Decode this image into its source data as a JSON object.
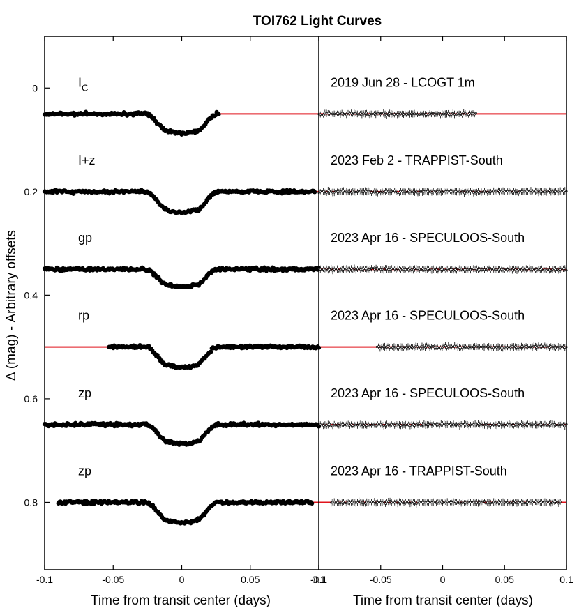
{
  "chart_data": {
    "type": "scatter",
    "title": "TOI762 Light Curves",
    "ylabel": "Δ (mag) - Arbitrary offsets",
    "ylim": [
      0.93,
      -0.1
    ],
    "y_ticks": [
      "0",
      "0.2",
      "0.4",
      "0.6",
      "0.8"
    ],
    "y_tick_values": [
      0,
      0.2,
      0.4,
      0.6,
      0.8
    ],
    "panels": [
      {
        "name": "light curves",
        "xlabel": "Time from transit center (days)",
        "xlim": [
          -0.1,
          0.1
        ],
        "x_ticks": [
          "-0.1",
          "-0.05",
          "0",
          "0.05",
          "0.1"
        ],
        "x_tick_values": [
          -0.1,
          -0.05,
          0,
          0.05,
          0.1
        ],
        "marker": "filled circle"
      },
      {
        "name": "residuals",
        "xlabel": "Time from transit center (days)",
        "xlim": [
          -0.1,
          0.1
        ],
        "x_ticks": [
          "-0.1",
          "-0.05",
          "0",
          "0.05",
          "0.1"
        ],
        "x_tick_values": [
          -0.1,
          -0.05,
          0,
          0.05,
          0.1
        ],
        "marker": "open circle with error bars"
      }
    ],
    "model_color": "#e0141c",
    "point_color": "#000000",
    "transit_model": {
      "ingress_start": -0.026,
      "full_start": -0.01,
      "full_end": 0.01,
      "egress_end": 0.026
    },
    "series": [
      {
        "filter": "I",
        "filter_sub": "C",
        "label": "2019 Jun 28 - LCOGT 1m",
        "baseline": 0.05,
        "depth": 0.033,
        "x_range": [
          -0.1,
          0.027
        ],
        "resid_range": [
          -0.1,
          0.027
        ]
      },
      {
        "filter": "I+z",
        "filter_sub": "",
        "label": "2023 Feb 2 - TRAPPIST-South",
        "baseline": 0.2,
        "depth": 0.036,
        "x_range": [
          -0.1,
          0.097
        ],
        "resid_range": [
          -0.1,
          0.1
        ]
      },
      {
        "filter": "gp",
        "filter_sub": "",
        "label": "2023 Apr 16 - SPECULOOS-South",
        "baseline": 0.35,
        "depth": 0.03,
        "x_range": [
          -0.1,
          0.1
        ],
        "resid_range": [
          -0.1,
          0.1
        ]
      },
      {
        "filter": "rp",
        "filter_sub": "",
        "label": "2023 Apr 16 - SPECULOOS-South",
        "baseline": 0.5,
        "depth": 0.035,
        "x_range": [
          -0.053,
          0.1
        ],
        "resid_range": [
          -0.053,
          0.1
        ]
      },
      {
        "filter": "zp",
        "filter_sub": "",
        "label": "2023 Apr 16 - SPECULOOS-South",
        "baseline": 0.65,
        "depth": 0.033,
        "x_range": [
          -0.1,
          0.1
        ],
        "resid_range": [
          -0.1,
          0.1
        ]
      },
      {
        "filter": "zp",
        "filter_sub": "",
        "label": "2023 Apr 16 - TRAPPIST-South",
        "baseline": 0.8,
        "depth": 0.035,
        "x_range": [
          -0.09,
          0.095
        ],
        "resid_range": [
          -0.09,
          0.095
        ]
      }
    ]
  }
}
